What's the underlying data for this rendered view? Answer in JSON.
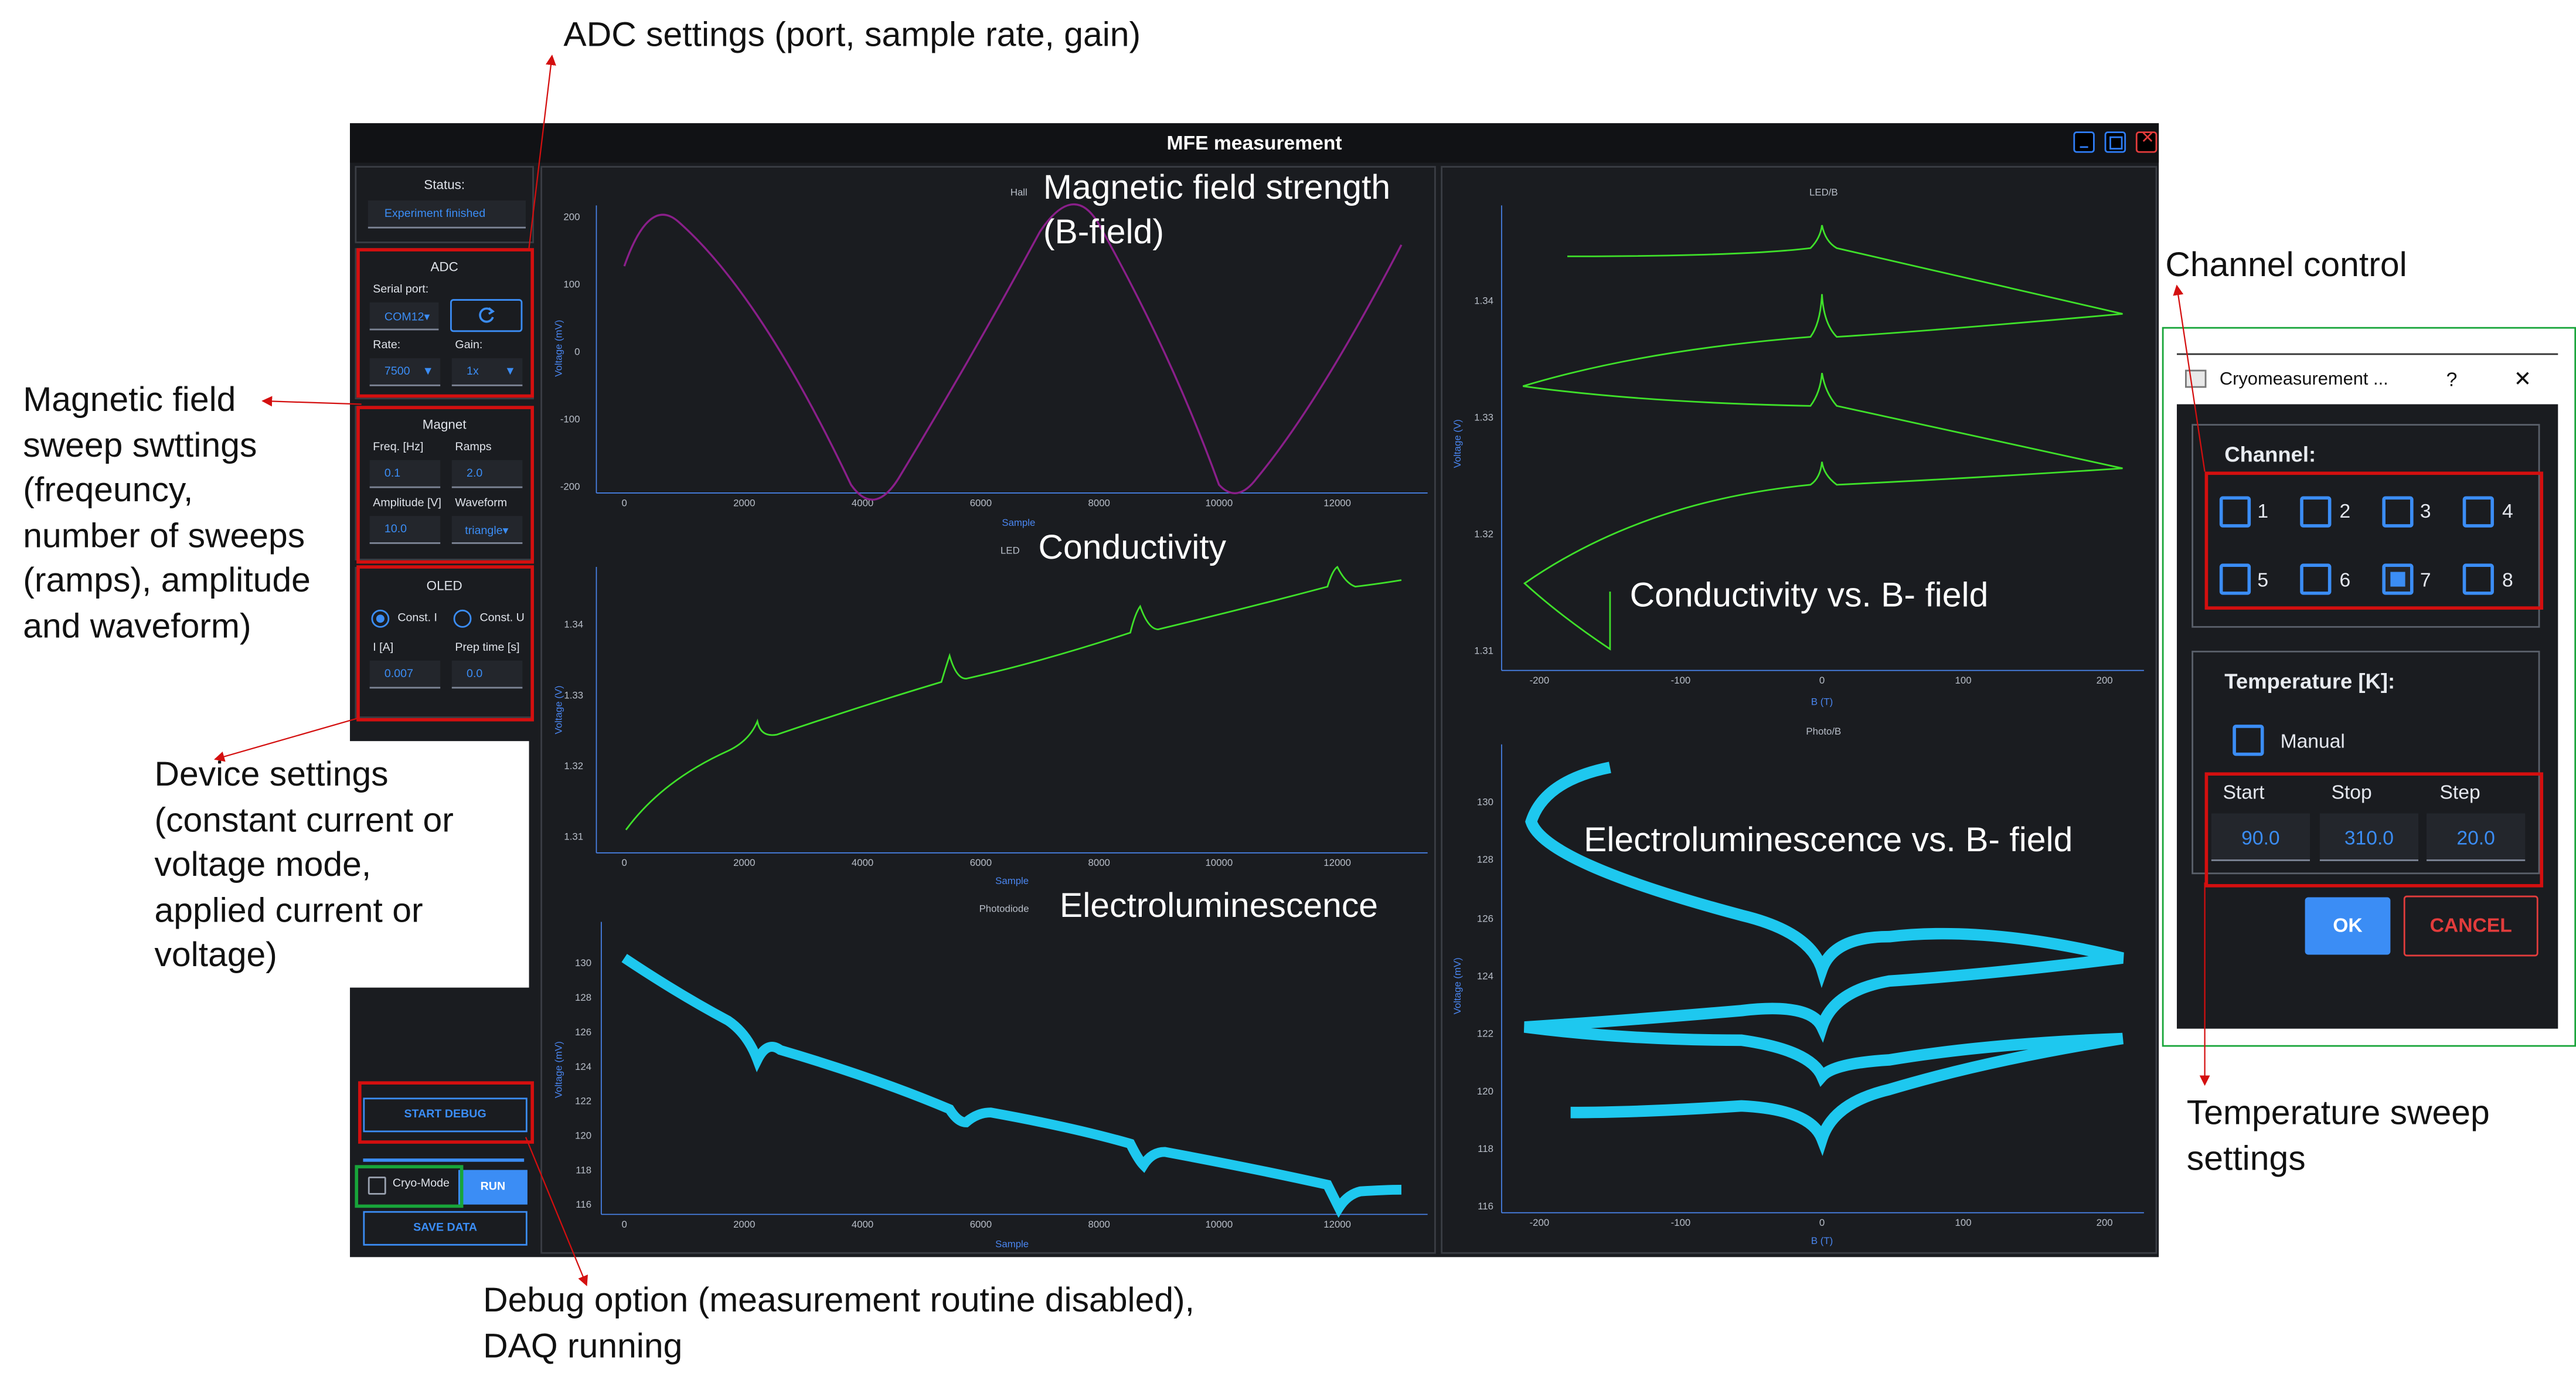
{
  "annotations": {
    "adc": "ADC settings (port, sample rate, gain)",
    "magnet_lines": [
      "Magnetic field",
      "sweep swttings",
      "(freqeuncy,",
      "number of sweeps",
      "(ramps), amplitude",
      "and waveform)"
    ],
    "device_lines": [
      "Device settings",
      "(constant current or",
      "voltage mode,",
      "applied current or",
      "voltage)"
    ],
    "debug_lines": [
      "Debug option (measurement routine disabled),",
      "DAQ running"
    ],
    "channel": "Channel control",
    "temp_lines": [
      "Temperature sweep",
      "settings"
    ],
    "bfield_lines": [
      "Magnetic field strength",
      "(B-field)"
    ],
    "conductivity": "Conductivity",
    "electrolum": "Electroluminescence",
    "cond_vs_b": "Conductivity vs. B- field",
    "el_vs_b": "Electroluminescence vs. B- field"
  },
  "window": {
    "title": "MFE measurement"
  },
  "status": {
    "label": "Status:",
    "value": "Experiment finished"
  },
  "adc": {
    "title": "ADC",
    "port_label": "Serial port:",
    "port_value": "COM12▾",
    "rate_label": "Rate:",
    "rate_value": "7500",
    "gain_label": "Gain:",
    "gain_value": "1x"
  },
  "magnet": {
    "title": "Magnet",
    "freq_label": "Freq. [Hz]",
    "freq_value": "0.1",
    "ramps_label": "Ramps",
    "ramps_value": "2.0",
    "amp_label": "Amplitude [V]",
    "amp_value": "10.0",
    "wave_label": "Waveform",
    "wave_value": "triangle▾"
  },
  "oled": {
    "title": "OLED",
    "const_i": "Const. I",
    "const_u": "Const. U",
    "i_label": "I [A]",
    "i_value": "0.007",
    "prep_label": "Prep time [s]",
    "prep_value": "0.0"
  },
  "buttons": {
    "start_debug": "START DEBUG",
    "cryo_mode": "Cryo-Mode",
    "run": "RUN",
    "save_data": "SAVE DATA"
  },
  "colors": {
    "hall": "#8a1f8a",
    "led": "#3fe02a",
    "photo": "#1ec8ef",
    "accent": "#3b8df5",
    "danger": "#d40f0f",
    "bg": "#1a1c20"
  },
  "plots": {
    "hall": {
      "title": "Hall",
      "ylabel": "Voltage (mV)",
      "xlabel": "Sample",
      "yticks": [
        "200",
        "100",
        "0",
        "-100",
        "-200"
      ],
      "xticks": [
        "0",
        "2000",
        "4000",
        "6000",
        "8000",
        "10000",
        "12000"
      ]
    },
    "led": {
      "title": "LED",
      "ylabel": "Voltage (V)",
      "xlabel": "Sample",
      "yticks": [
        "1.34",
        "1.33",
        "1.32",
        "1.31"
      ],
      "xticks": [
        "0",
        "2000",
        "4000",
        "6000",
        "8000",
        "10000",
        "12000"
      ]
    },
    "photo": {
      "title": "Photodiode",
      "ylabel": "Voltage (mV)",
      "xlabel": "Sample",
      "yticks": [
        "130",
        "128",
        "126",
        "124",
        "122",
        "120",
        "118",
        "116"
      ],
      "xticks": [
        "0",
        "2000",
        "4000",
        "6000",
        "8000",
        "10000",
        "12000"
      ]
    },
    "ledb": {
      "title": "LED/B",
      "ylabel": "Voltage (V)",
      "xlabel": "B (T)",
      "yticks": [
        "1.34",
        "1.33",
        "1.32",
        "1.31"
      ],
      "xticks": [
        "-200",
        "-100",
        "0",
        "100",
        "200"
      ]
    },
    "photob": {
      "title": "Photo/B",
      "ylabel": "Voltage (mV)",
      "xlabel": "B (T)",
      "yticks": [
        "130",
        "128",
        "126",
        "124",
        "122",
        "120",
        "118",
        "116"
      ],
      "xticks": [
        "-200",
        "-100",
        "0",
        "100",
        "200"
      ]
    }
  },
  "dialog": {
    "title": "Cryomeasurement ...",
    "help": "?",
    "close": "✕",
    "channel_label": "Channel:",
    "channels": [
      "1",
      "2",
      "3",
      "4",
      "5",
      "6",
      "7",
      "8"
    ],
    "selected_channel": "7",
    "temp_label": "Temperature [K]:",
    "manual": "Manual",
    "start_label": "Start",
    "start_value": "90.0",
    "stop_label": "Stop",
    "stop_value": "310.0",
    "step_label": "Step",
    "step_value": "20.0",
    "ok": "OK",
    "cancel": "CANCEL"
  }
}
